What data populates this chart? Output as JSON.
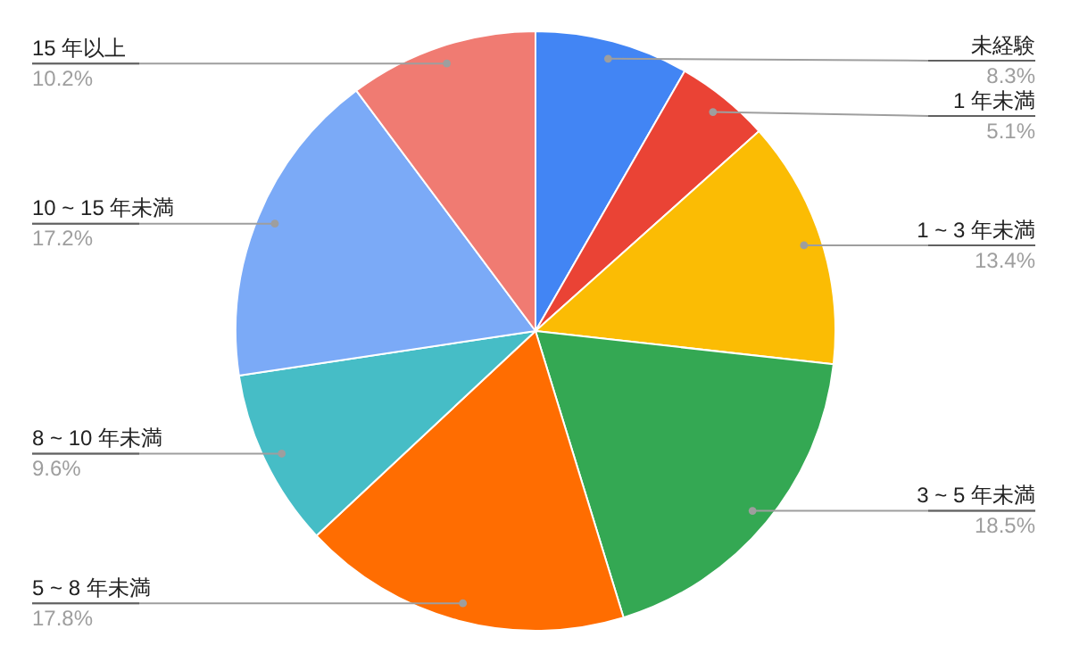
{
  "chart_data": {
    "type": "pie",
    "categories": [
      "未経験",
      "1 年未満",
      "1 ~ 3 年未満",
      "3 ~ 5 年未満",
      "5 ~ 8 年未満",
      "8 ~ 10 年未満",
      "10 ~ 15 年未満",
      "15 年以上"
    ],
    "values": [
      8.3,
      5.1,
      13.4,
      18.5,
      17.8,
      9.6,
      17.2,
      10.2
    ],
    "value_labels": [
      "8.3%",
      "5.1%",
      "13.4%",
      "18.5%",
      "17.8%",
      "9.6%",
      "17.2%",
      "10.2%"
    ],
    "colors": [
      "#4285f4",
      "#ea4335",
      "#fbbc04",
      "#34a853",
      "#ff6d01",
      "#46bdc6",
      "#7baaf7",
      "#f07b72"
    ],
    "legend": false
  }
}
